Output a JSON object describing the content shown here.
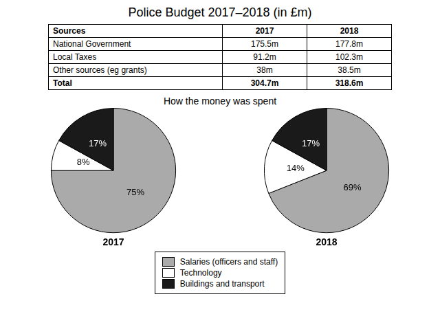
{
  "title": "Police Budget 2017–2018 (in £m)",
  "table": {
    "headers": [
      "Sources",
      "2017",
      "2018"
    ],
    "rows": [
      [
        "National Government",
        "175.5m",
        "177.8m"
      ],
      [
        "Local Taxes",
        "91.2m",
        "102.3m"
      ],
      [
        "Other sources (eg grants)",
        "38m",
        "38.5m"
      ],
      [
        "Total",
        "304.7m",
        "318.6m"
      ]
    ]
  },
  "subtitle": "How the money was spent",
  "legend": "bottom",
  "chart_data": [
    {
      "type": "pie",
      "title": "2017",
      "categories": [
        "Salaries (officers and staff)",
        "Technology",
        "Buildings and transport"
      ],
      "values": [
        75,
        8,
        17
      ],
      "value_labels": [
        "75%",
        "8%",
        "17%"
      ],
      "colors": [
        "#aaaaaa",
        "#ffffff",
        "#1a1a1a"
      ],
      "data_labels": true
    },
    {
      "type": "pie",
      "title": "2018",
      "categories": [
        "Salaries (officers and staff)",
        "Technology",
        "Buildings and transport"
      ],
      "values": [
        69,
        14,
        17
      ],
      "value_labels": [
        "69%",
        "14%",
        "17%"
      ],
      "colors": [
        "#aaaaaa",
        "#ffffff",
        "#1a1a1a"
      ],
      "data_labels": true
    }
  ]
}
